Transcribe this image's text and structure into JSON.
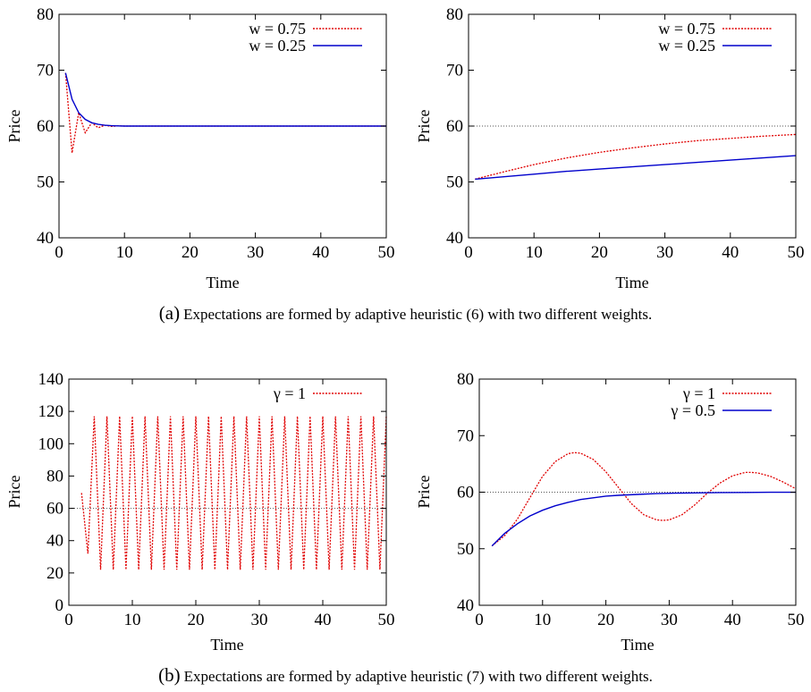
{
  "captions": {
    "a": {
      "label": "(a)",
      "text": "Expectations are formed by adaptive heuristic (6) with two different weights."
    },
    "b": {
      "label": "(b)",
      "text": "Expectations are formed by adaptive heuristic (7) with two different weights."
    }
  },
  "colors": {
    "red": "#e00000",
    "blue": "#0000cc",
    "ref": "#555555"
  },
  "chart_data": [
    {
      "type": "line",
      "xlabel": "Time",
      "ylabel": "Price",
      "xlim": [
        0,
        50
      ],
      "ylim": [
        40,
        80
      ],
      "xticks": [
        0,
        10,
        20,
        30,
        40,
        50
      ],
      "yticks": [
        40,
        50,
        60,
        70,
        80
      ],
      "legend_position": "top-right",
      "series": [
        {
          "name": "w = 0.75",
          "style": "dashed",
          "color": "red",
          "x": [
            1,
            2,
            3,
            4,
            5,
            6,
            7,
            8,
            9,
            10,
            50
          ],
          "y": [
            69.5,
            55.2,
            62.4,
            58.8,
            60.6,
            59.7,
            60.15,
            59.93,
            60.03,
            60.0,
            60.0
          ]
        },
        {
          "name": "w = 0.25",
          "style": "solid",
          "color": "blue",
          "x": [
            1,
            2,
            3,
            4,
            5,
            6,
            7,
            8,
            9,
            10,
            50
          ],
          "y": [
            69.5,
            64.8,
            62.4,
            61.2,
            60.6,
            60.3,
            60.15,
            60.07,
            60.04,
            60.0,
            60.0
          ]
        }
      ]
    },
    {
      "type": "line",
      "xlabel": "Time",
      "ylabel": "Price",
      "xlim": [
        0,
        50
      ],
      "ylim": [
        40,
        80
      ],
      "xticks": [
        0,
        10,
        20,
        30,
        40,
        50
      ],
      "yticks": [
        40,
        50,
        60,
        70,
        80
      ],
      "reference_line": 60,
      "legend_position": "top-right",
      "series": [
        {
          "name": "w = 0.75",
          "style": "dashed",
          "color": "red",
          "x": [
            1,
            5,
            10,
            15,
            20,
            25,
            30,
            35,
            40,
            45,
            50
          ],
          "y": [
            50.5,
            51.7,
            53.1,
            54.3,
            55.3,
            56.1,
            56.8,
            57.4,
            57.8,
            58.2,
            58.5
          ]
        },
        {
          "name": "w = 0.25",
          "style": "solid",
          "color": "blue",
          "x": [
            1,
            5,
            10,
            15,
            20,
            25,
            30,
            35,
            40,
            45,
            50
          ],
          "y": [
            50.5,
            50.9,
            51.4,
            51.9,
            52.3,
            52.7,
            53.1,
            53.5,
            53.9,
            54.3,
            54.7
          ]
        }
      ]
    },
    {
      "type": "line",
      "xlabel": "Time",
      "ylabel": "Price",
      "xlim": [
        0,
        50
      ],
      "ylim": [
        0,
        140
      ],
      "xticks": [
        0,
        10,
        20,
        30,
        40,
        50
      ],
      "yticks": [
        0,
        20,
        40,
        60,
        80,
        100,
        120,
        140
      ],
      "reference_line": 60,
      "legend_position": "top-right",
      "series": [
        {
          "name": "γ = 1",
          "style": "dashed",
          "color": "red",
          "x": [
            2,
            3,
            4,
            5,
            6,
            7,
            8,
            9,
            10,
            11,
            12,
            13,
            14,
            15,
            16,
            17,
            18,
            19,
            20,
            21,
            22,
            23,
            24,
            25,
            26,
            27,
            28,
            29,
            30,
            31,
            32,
            33,
            34,
            35,
            36,
            37,
            38,
            39,
            40,
            41,
            42,
            43,
            44,
            45,
            46,
            47,
            48,
            49,
            50
          ],
          "y": [
            69.5,
            32,
            117,
            22,
            117,
            22,
            117,
            22,
            117,
            22,
            117,
            22,
            117,
            22,
            117,
            22,
            117,
            22,
            117,
            22,
            117,
            22,
            117,
            22,
            117,
            22,
            117,
            22,
            117,
            22,
            117,
            22,
            117,
            22,
            117,
            22,
            117,
            22,
            117,
            22,
            117,
            22,
            117,
            22,
            117,
            22,
            117,
            22,
            117
          ]
        }
      ]
    },
    {
      "type": "line",
      "xlabel": "Time",
      "ylabel": "Price",
      "xlim": [
        0,
        50
      ],
      "ylim": [
        40,
        80
      ],
      "xticks": [
        0,
        10,
        20,
        30,
        40,
        50
      ],
      "yticks": [
        40,
        50,
        60,
        70,
        80
      ],
      "reference_line": 60,
      "legend_position": "top-right",
      "series": [
        {
          "name": "γ = 1",
          "style": "dashed",
          "color": "red",
          "x": [
            2,
            4,
            6,
            8,
            10,
            12,
            14,
            15,
            16,
            18,
            20,
            22,
            24,
            26,
            28,
            29,
            30,
            32,
            34,
            36,
            38,
            40,
            42,
            43,
            44,
            46,
            48,
            50
          ],
          "y": [
            50.5,
            52.3,
            55.2,
            59.0,
            62.8,
            65.4,
            66.8,
            67.0,
            66.9,
            65.8,
            63.6,
            60.8,
            58.0,
            56.0,
            55.1,
            55.0,
            55.1,
            56.0,
            57.7,
            59.8,
            61.6,
            62.9,
            63.5,
            63.5,
            63.4,
            62.8,
            61.8,
            60.6
          ]
        },
        {
          "name": "γ = 0.5",
          "style": "solid",
          "color": "blue",
          "x": [
            2,
            4,
            6,
            8,
            10,
            12,
            14,
            16,
            18,
            20,
            22,
            25,
            28,
            31,
            34,
            38,
            42,
            46,
            50
          ],
          "y": [
            50.5,
            52.7,
            54.4,
            55.8,
            56.8,
            57.6,
            58.2,
            58.7,
            59.0,
            59.3,
            59.45,
            59.6,
            59.75,
            59.82,
            59.88,
            59.93,
            59.96,
            59.98,
            59.99
          ]
        }
      ]
    }
  ]
}
